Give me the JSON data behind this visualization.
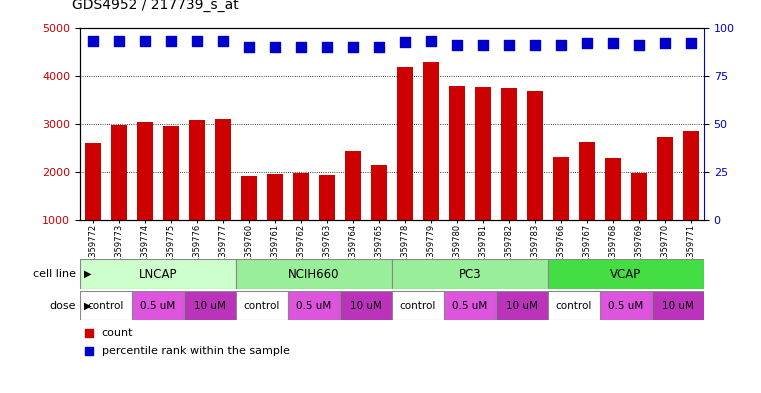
{
  "title": "GDS4952 / 217739_s_at",
  "samples": [
    "GSM1359772",
    "GSM1359773",
    "GSM1359774",
    "GSM1359775",
    "GSM1359776",
    "GSM1359777",
    "GSM1359760",
    "GSM1359761",
    "GSM1359762",
    "GSM1359763",
    "GSM1359764",
    "GSM1359765",
    "GSM1359778",
    "GSM1359779",
    "GSM1359780",
    "GSM1359781",
    "GSM1359782",
    "GSM1359783",
    "GSM1359766",
    "GSM1359767",
    "GSM1359768",
    "GSM1359769",
    "GSM1359770",
    "GSM1359771"
  ],
  "counts": [
    2600,
    2980,
    3040,
    2950,
    3080,
    3100,
    1920,
    1950,
    1970,
    1940,
    2440,
    2150,
    4170,
    4290,
    3790,
    3760,
    3750,
    3680,
    2320,
    2620,
    2280,
    1970,
    2730,
    2850
  ],
  "percentile_y": [
    4720,
    4720,
    4720,
    4720,
    4720,
    4720,
    4590,
    4590,
    4590,
    4590,
    4590,
    4590,
    4700,
    4720,
    4640,
    4640,
    4640,
    4640,
    4640,
    4670,
    4670,
    4640,
    4670,
    4670
  ],
  "bar_color": "#cc0000",
  "dot_color": "#0000cc",
  "ylim_left": [
    1000,
    5000
  ],
  "yticks_left": [
    1000,
    2000,
    3000,
    4000,
    5000
  ],
  "yticks_right": [
    0,
    25,
    50,
    75,
    100
  ],
  "cell_lines": [
    {
      "name": "LNCAP",
      "start": 0,
      "end": 6,
      "color": "#ccffcc"
    },
    {
      "name": "NCIH660",
      "start": 6,
      "end": 12,
      "color": "#99ee99"
    },
    {
      "name": "PC3",
      "start": 12,
      "end": 18,
      "color": "#99ee99"
    },
    {
      "name": "VCAP",
      "start": 18,
      "end": 24,
      "color": "#44dd44"
    }
  ],
  "doses": [
    {
      "label": "control",
      "start": 0,
      "end": 2,
      "color": "#ffffff"
    },
    {
      "label": "0.5 uM",
      "start": 2,
      "end": 4,
      "color": "#dd55dd"
    },
    {
      "label": "10 uM",
      "start": 4,
      "end": 6,
      "color": "#bb33bb"
    },
    {
      "label": "control",
      "start": 6,
      "end": 8,
      "color": "#ffffff"
    },
    {
      "label": "0.5 uM",
      "start": 8,
      "end": 10,
      "color": "#dd55dd"
    },
    {
      "label": "10 uM",
      "start": 10,
      "end": 12,
      "color": "#bb33bb"
    },
    {
      "label": "control",
      "start": 12,
      "end": 14,
      "color": "#ffffff"
    },
    {
      "label": "0.5 uM",
      "start": 14,
      "end": 16,
      "color": "#dd55dd"
    },
    {
      "label": "10 uM",
      "start": 16,
      "end": 18,
      "color": "#bb33bb"
    },
    {
      "label": "control",
      "start": 18,
      "end": 20,
      "color": "#ffffff"
    },
    {
      "label": "0.5 uM",
      "start": 20,
      "end": 22,
      "color": "#dd55dd"
    },
    {
      "label": "10 uM",
      "start": 22,
      "end": 24,
      "color": "#bb33bb"
    }
  ],
  "background_color": "#ffffff",
  "grid_color": "#000000",
  "tick_label_color_left": "#cc0000",
  "tick_label_color_right": "#0000cc",
  "bar_width": 0.6,
  "dot_size": 45
}
